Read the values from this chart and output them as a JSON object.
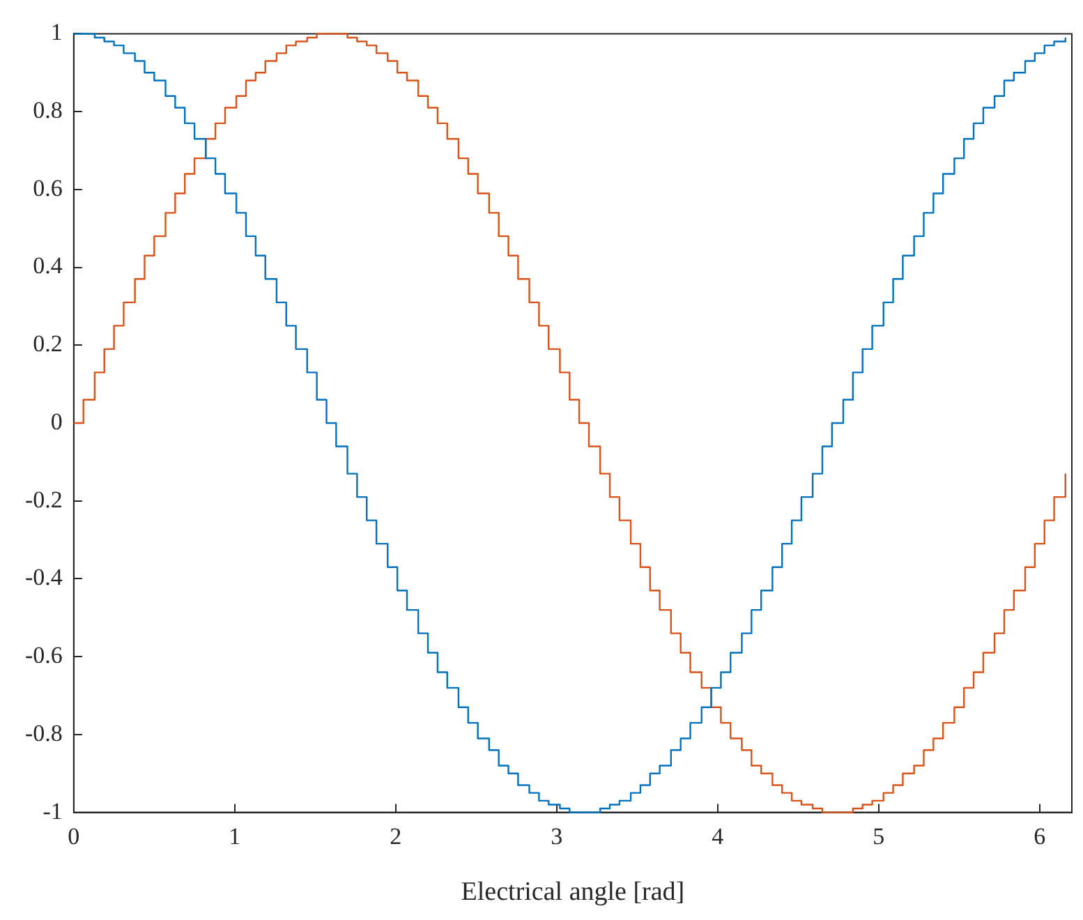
{
  "chart_data": {
    "type": "step",
    "xlabel": "Electrical angle [rad]",
    "x": [
      0,
      0.06,
      0.13,
      0.19,
      0.25,
      0.31,
      0.38,
      0.44,
      0.5,
      0.57,
      0.63,
      0.69,
      0.75,
      0.82,
      0.88,
      0.94,
      1.01,
      1.07,
      1.13,
      1.19,
      1.26,
      1.32,
      1.38,
      1.45,
      1.51,
      1.57,
      1.63,
      1.7,
      1.76,
      1.82,
      1.88,
      1.95,
      2.01,
      2.07,
      2.14,
      2.2,
      2.26,
      2.32,
      2.39,
      2.45,
      2.51,
      2.58,
      2.64,
      2.7,
      2.76,
      2.83,
      2.89,
      2.95,
      3.02,
      3.08,
      3.14,
      3.2,
      3.27,
      3.33,
      3.39,
      3.46,
      3.52,
      3.58,
      3.64,
      3.71,
      3.77,
      3.83,
      3.9,
      3.96,
      4.02,
      4.08,
      4.15,
      4.21,
      4.27,
      4.34,
      4.4,
      4.46,
      4.52,
      4.59,
      4.65,
      4.71,
      4.78,
      4.84,
      4.9,
      4.96,
      5.03,
      5.09,
      5.15,
      5.22,
      5.28,
      5.34,
      5.4,
      5.47,
      5.53,
      5.59,
      5.65,
      5.72,
      5.78,
      5.84,
      5.91,
      5.97,
      6.03,
      6.09,
      6.16
    ],
    "series": [
      {
        "color": "#0072bd",
        "values": [
          1,
          1,
          0.99,
          0.98,
          0.97,
          0.95,
          0.93,
          0.9,
          0.88,
          0.84,
          0.81,
          0.77,
          0.73,
          0.68,
          0.64,
          0.59,
          0.54,
          0.48,
          0.43,
          0.37,
          0.31,
          0.25,
          0.19,
          0.13,
          0.06,
          0,
          -0.06,
          -0.13,
          -0.19,
          -0.25,
          -0.31,
          -0.37,
          -0.43,
          -0.48,
          -0.54,
          -0.59,
          -0.64,
          -0.68,
          -0.73,
          -0.77,
          -0.81,
          -0.84,
          -0.88,
          -0.9,
          -0.93,
          -0.95,
          -0.97,
          -0.98,
          -0.99,
          -1,
          -1,
          -1,
          -0.99,
          -0.98,
          -0.97,
          -0.95,
          -0.93,
          -0.9,
          -0.88,
          -0.84,
          -0.81,
          -0.77,
          -0.73,
          -0.68,
          -0.64,
          -0.59,
          -0.54,
          -0.48,
          -0.43,
          -0.37,
          -0.31,
          -0.25,
          -0.19,
          -0.13,
          -0.06,
          0,
          0.06,
          0.13,
          0.19,
          0.25,
          0.31,
          0.37,
          0.43,
          0.48,
          0.54,
          0.59,
          0.64,
          0.68,
          0.73,
          0.77,
          0.81,
          0.84,
          0.88,
          0.9,
          0.93,
          0.95,
          0.97,
          0.98,
          0.99
        ]
      },
      {
        "color": "#d95319",
        "values": [
          0,
          0.06,
          0.13,
          0.19,
          0.25,
          0.31,
          0.37,
          0.43,
          0.48,
          0.54,
          0.59,
          0.64,
          0.68,
          0.73,
          0.77,
          0.81,
          0.84,
          0.88,
          0.9,
          0.93,
          0.95,
          0.97,
          0.98,
          0.99,
          1,
          1,
          1,
          0.99,
          0.98,
          0.97,
          0.95,
          0.93,
          0.9,
          0.88,
          0.84,
          0.81,
          0.77,
          0.73,
          0.68,
          0.64,
          0.59,
          0.54,
          0.48,
          0.43,
          0.37,
          0.31,
          0.25,
          0.19,
          0.13,
          0.06,
          0,
          -0.06,
          -0.13,
          -0.19,
          -0.25,
          -0.31,
          -0.37,
          -0.43,
          -0.48,
          -0.54,
          -0.59,
          -0.64,
          -0.68,
          -0.73,
          -0.77,
          -0.81,
          -0.84,
          -0.88,
          -0.9,
          -0.93,
          -0.95,
          -0.97,
          -0.98,
          -0.99,
          -1,
          -1,
          -1,
          -0.99,
          -0.98,
          -0.97,
          -0.95,
          -0.93,
          -0.9,
          -0.88,
          -0.84,
          -0.81,
          -0.77,
          -0.73,
          -0.68,
          -0.64,
          -0.59,
          -0.54,
          -0.48,
          -0.43,
          -0.37,
          -0.31,
          -0.25,
          -0.19,
          -0.13
        ]
      }
    ],
    "xlim": [
      0,
      6.2
    ],
    "xticks": [
      0,
      1,
      2,
      3,
      4,
      5,
      6
    ],
    "ylim": [
      -1,
      1
    ],
    "yticks": [
      -1,
      -0.8,
      -0.6,
      -0.4,
      -0.2,
      0,
      0.2,
      0.4,
      0.6,
      0.8,
      1
    ],
    "grid": false,
    "legend": false
  }
}
